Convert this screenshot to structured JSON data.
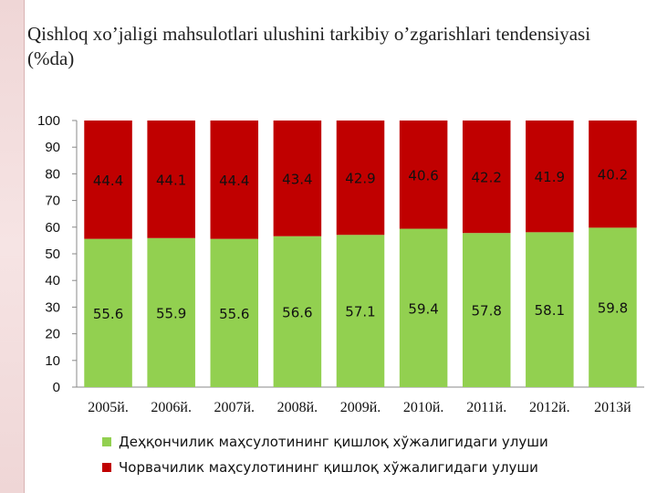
{
  "title": "Qishloq xo’jaligi mahsulotlari ulushini tarkibiy o’zgarishlari tendensiyasi (%da)",
  "colors": {
    "crop": "#92d050",
    "livestock": "#c00000"
  },
  "chart_data": {
    "type": "bar",
    "stacked": true,
    "categories": [
      "2005й.",
      "2006й.",
      "2007й.",
      "2008й.",
      "2009й.",
      "2010й.",
      "2011й.",
      "2012й.",
      "2013й"
    ],
    "series": [
      {
        "name": "Деҳқончилик маҳсулотининг қишлоқ хўжалигидаги улуши",
        "values": [
          55.6,
          55.9,
          55.6,
          56.6,
          57.1,
          59.4,
          57.8,
          58.1,
          59.8
        ]
      },
      {
        "name": "Чорвачилик маҳсулотининг қишлоқ хўжалигидаги улуши",
        "values": [
          44.4,
          44.1,
          44.4,
          43.4,
          42.9,
          40.6,
          42.2,
          41.9,
          40.2
        ]
      }
    ],
    "ylim": [
      0,
      100
    ],
    "yticks": [
      0,
      10,
      20,
      30,
      40,
      50,
      60,
      70,
      80,
      90,
      100
    ],
    "legend_position": "bottom"
  }
}
